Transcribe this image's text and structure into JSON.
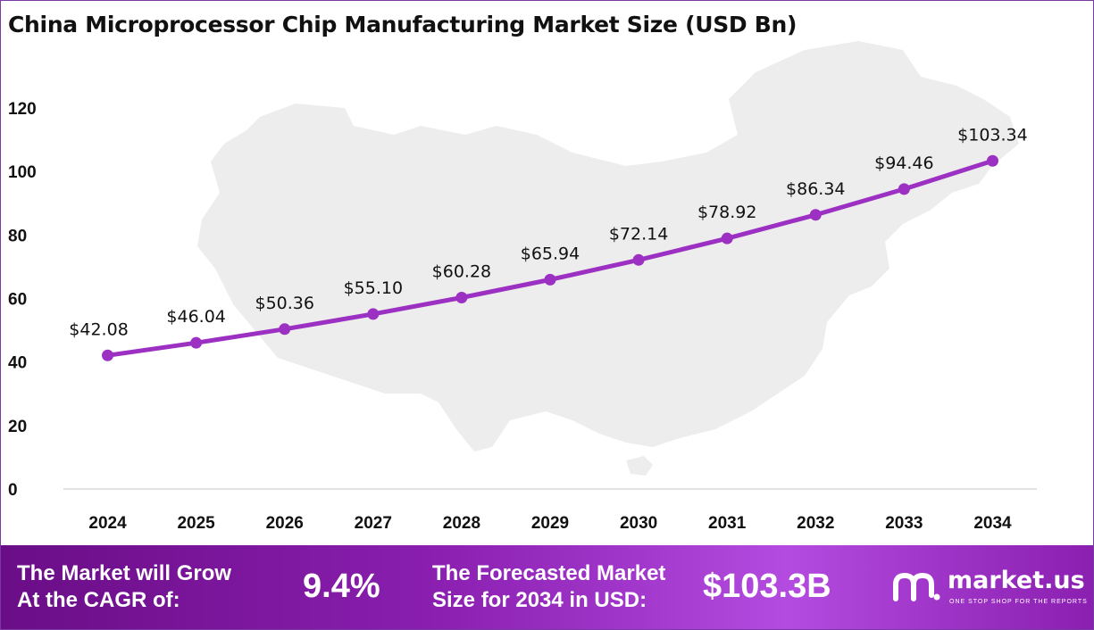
{
  "title": "China Microprocessor Chip Manufacturing Market Size (USD Bn)",
  "chart_data": {
    "type": "line",
    "title": "China Microprocessor Chip Manufacturing Market Size (USD Bn)",
    "xlabel": "",
    "ylabel": "",
    "categories": [
      "2024",
      "2025",
      "2026",
      "2027",
      "2028",
      "2029",
      "2030",
      "2031",
      "2032",
      "2033",
      "2034"
    ],
    "series": [
      {
        "values": [
          42.08,
          46.04,
          50.36,
          55.1,
          60.28,
          65.94,
          72.14,
          78.92,
          86.34,
          94.46,
          103.34
        ],
        "labels": [
          "$42.08",
          "$46.04",
          "$50.36",
          "$55.10",
          "$60.28",
          "$65.94",
          "$72.14",
          "$78.92",
          "$86.34",
          "$94.46",
          "$103.34"
        ],
        "color": "#9b30c2"
      }
    ],
    "y_ticks": [
      "0",
      "20",
      "40",
      "60",
      "80",
      "100",
      "120"
    ],
    "ylim": [
      0,
      120
    ],
    "grid": false,
    "legend": "none"
  },
  "footer": {
    "cagr_label_line1": "The Market will Grow",
    "cagr_label_line2": "At the CAGR of:",
    "cagr_value": "9.4%",
    "forecast_label_line1": "The Forecasted Market",
    "forecast_label_line2": "Size for 2034 in USD:",
    "forecast_value": "$103.3B"
  },
  "brand": {
    "name": "market.us",
    "tagline": "ONE STOP SHOP FOR THE REPORTS",
    "icon": "market-us-logo-icon"
  },
  "colors": {
    "line": "#9b30c2",
    "footer_dark": "#6a0d86",
    "footer_light": "#b44be0",
    "map_fill": "#ededed"
  }
}
